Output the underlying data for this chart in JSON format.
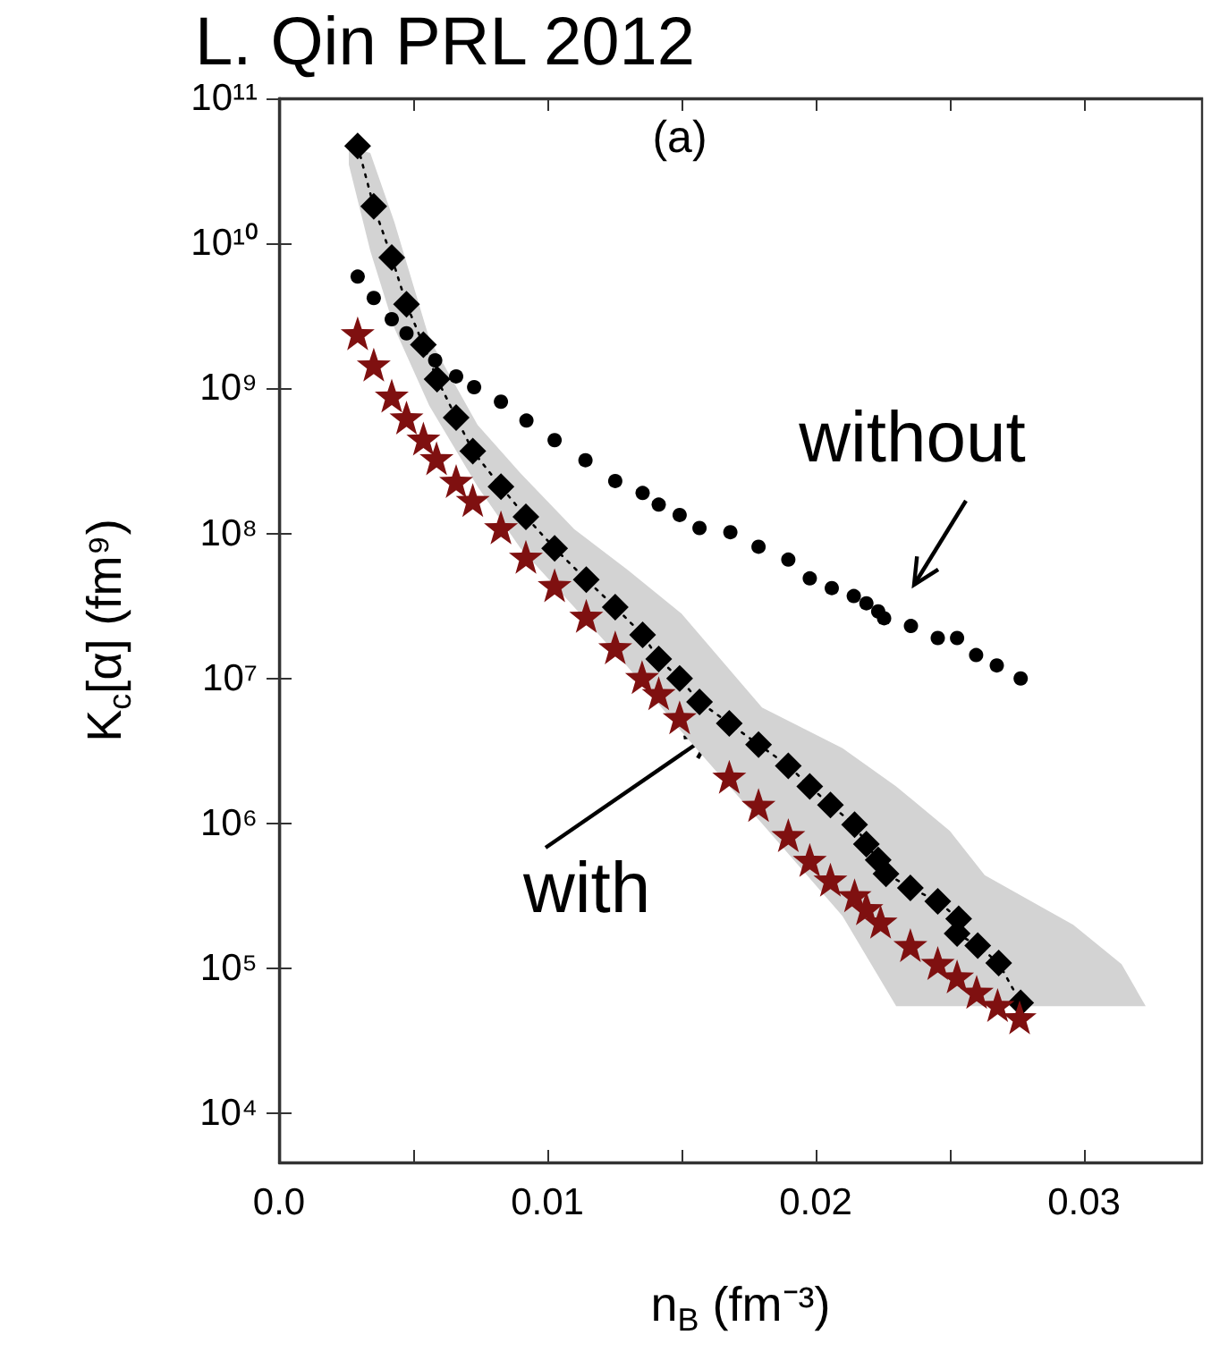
{
  "chart_data": {
    "type": "scatter",
    "title": "L. Qin PRL 2012",
    "xlabel": "n$_{B}$ (fm⁻³)",
    "ylabel": "K$_{c}$[α] (fm⁹)",
    "log": "y",
    "xlim": [
      0,
      0.0344
    ],
    "ylim": [
      4600,
      100000000000
    ],
    "xticks": [
      {
        "value": 0,
        "label": "0.0"
      },
      {
        "value": 0.005,
        "label": null
      },
      {
        "value": 0.01,
        "label": "0.01"
      },
      {
        "value": 0.015,
        "label": null
      },
      {
        "value": 0.02,
        "label": "0.02"
      },
      {
        "value": 0.025,
        "label": null
      },
      {
        "value": 0.03,
        "label": "0.03"
      }
    ],
    "yticks": [
      {
        "value": 10000,
        "label": "10⁴"
      },
      {
        "value": 100000,
        "label": "10⁵"
      },
      {
        "value": 1000000,
        "label": "10⁶"
      },
      {
        "value": 10000000,
        "label": "10⁷"
      },
      {
        "value": 100000000,
        "label": "10⁸"
      },
      {
        "value": 1000000000,
        "label": "10⁹"
      },
      {
        "value": 10000000000,
        "label": "10¹⁰"
      },
      {
        "value": 100000000000,
        "label": "10¹¹"
      }
    ],
    "annotations": [
      "(a)",
      "without",
      "with"
    ],
    "series": [
      {
        "type": "area",
        "color": "#d3d3d3",
        "x": [
          0.0026,
          0.0034,
          0.0043,
          0.0056,
          0.0074,
          0.009,
          0.011,
          0.013,
          0.015,
          0.018,
          0.021,
          0.023,
          0.025,
          0.0263,
          0.0296,
          0.0314,
          0.0323
        ],
        "values": [
          null,
          null,
          null,
          null,
          null,
          null,
          null,
          null,
          null,
          null,
          null,
          null,
          null,
          null,
          null,
          null,
          null
        ],
        "lower": [
          35000000000,
          8900000000,
          2600000000,
          760000000,
          210000000,
          79000000,
          31000000,
          12000000,
          4300000,
          1000000,
          230000,
          55000,
          55000,
          55000,
          55000,
          55000,
          55000
        ],
        "upper": [
          46000000000,
          42000000000,
          14000000000,
          2200000000,
          560000000,
          260000000,
          107000000,
          56000000,
          28000000,
          6300000,
          3300000,
          1800000,
          890000,
          440000,
          200000,
          107000,
          55000
        ]
      },
      {
        "type": "line",
        "color": "#000000",
        "marker": "diamond",
        "line_style": "dotted",
        "x": [
          0.00293,
          0.00353,
          0.0042,
          0.00475,
          0.00538,
          0.00589,
          0.0066,
          0.00722,
          0.00827,
          0.0092,
          0.01027,
          0.01145,
          0.01253,
          0.01355,
          0.01415,
          0.01493,
          0.01567,
          0.01678,
          0.01787,
          0.01898,
          0.01978,
          0.02055,
          0.02145,
          0.02189,
          0.02233,
          0.02262,
          0.02353,
          0.02455,
          0.02533,
          0.02527,
          0.02604,
          0.02682,
          0.02764
        ],
        "values": [
          47000000000,
          18000000000,
          8000000000,
          3800000000,
          2000000000,
          1160000000,
          630000000,
          370000000,
          210000000,
          130000000,
          79000000,
          48000000,
          31000000,
          20000000,
          13600000,
          10000000,
          6900000,
          4900000,
          3500000,
          2500000,
          1800000,
          1340000,
          980000,
          720000,
          560000,
          450000,
          360000,
          290000,
          220000,
          174000,
          144000,
          109000,
          58000
        ]
      },
      {
        "color": "#7f1010",
        "marker": "star",
        "x": [
          0.00293,
          0.00353,
          0.0042,
          0.00475,
          0.00538,
          0.00587,
          0.0066,
          0.00722,
          0.00827,
          0.0092,
          0.01027,
          0.01145,
          0.01253,
          0.01353,
          0.01415,
          0.01493,
          0.01678,
          0.01787,
          0.01898,
          0.01978,
          0.02055,
          0.02145,
          0.02189,
          0.02242,
          0.02353,
          0.02455,
          0.02527,
          0.026,
          0.02678,
          0.0276
        ],
        "values": [
          2400000000,
          1460000000,
          890000000,
          630000000,
          450000000,
          330000000,
          230000000,
          170000000,
          110000000,
          69000000,
          44000000,
          27000000,
          16400000,
          10200000,
          7900000,
          5400000,
          2100000,
          1340000,
          830000,
          560000,
          410000,
          320000,
          260000,
          210000,
          145000,
          109000,
          88000,
          69000,
          56000,
          46000
        ]
      },
      {
        "color": "#000000",
        "marker": "circle",
        "x": [
          0.00293,
          0.00353,
          0.0042,
          0.00475,
          0.00582,
          0.0066,
          0.00727,
          0.00827,
          0.00922,
          0.01027,
          0.01142,
          0.01253,
          0.01355,
          0.01415,
          0.01493,
          0.01567,
          0.01682,
          0.01787,
          0.01898,
          0.01978,
          0.0206,
          0.02142,
          0.02189,
          0.02233,
          0.02255,
          0.02355,
          0.02455,
          0.02527,
          0.02598,
          0.02675,
          0.02764
        ],
        "values": [
          5900000000,
          4200000000,
          3000000000,
          2400000000,
          1560000000,
          1210000000,
          1020000000,
          810000000,
          600000000,
          440000000,
          320000000,
          230000000,
          190000000,
          158000000,
          134000000,
          109000000,
          102000000,
          81000000,
          66000000,
          49000000,
          42000000,
          37000000,
          33000000,
          29000000,
          26000000,
          23000000,
          19000000,
          19000000,
          14500000,
          12300000,
          10000000
        ]
      }
    ]
  }
}
